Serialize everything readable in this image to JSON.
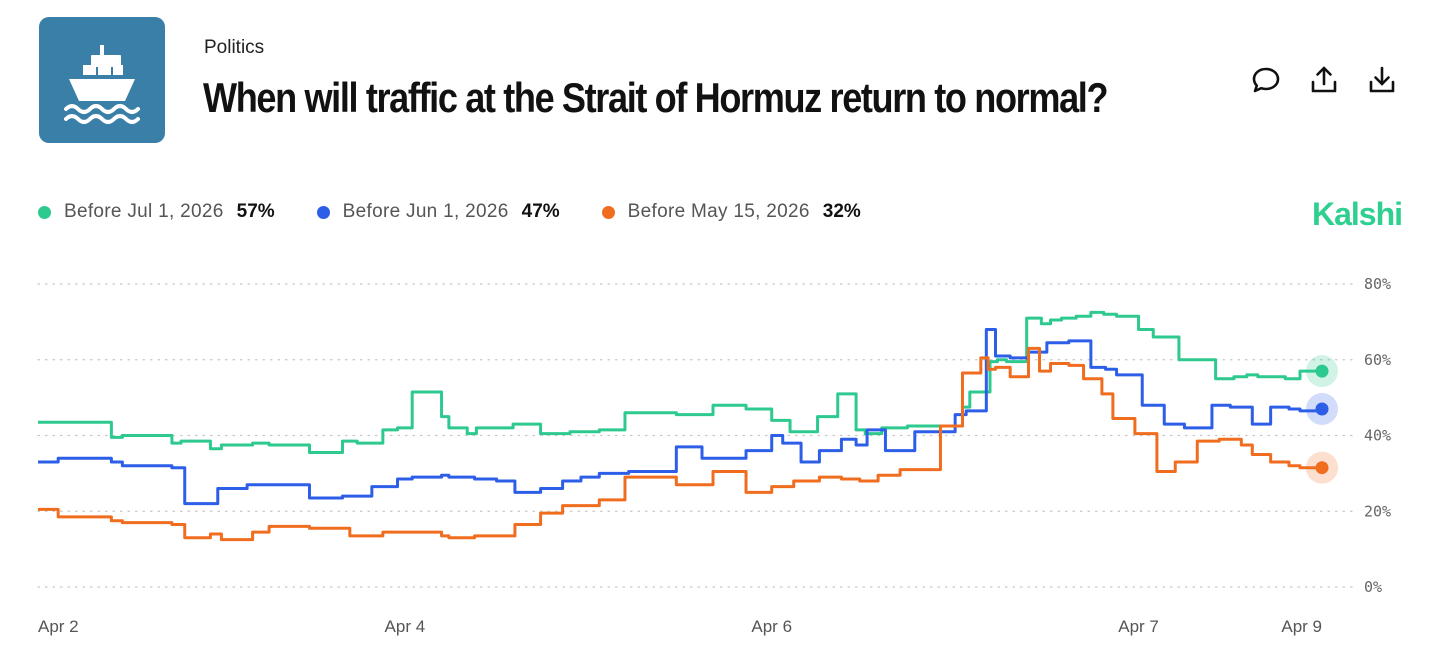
{
  "header": {
    "category": "Politics",
    "title": "When will traffic at the Strait of Hormuz return to normal?",
    "brand": "Kalshi",
    "logo_icon": "cargo-ship-icon",
    "actions": [
      {
        "name": "comment-button",
        "icon": "speech-bubble-icon"
      },
      {
        "name": "share-button",
        "icon": "upload-icon"
      },
      {
        "name": "download-button",
        "icon": "download-icon"
      }
    ]
  },
  "colors": {
    "logo_bg": "#3a7fa8",
    "brand": "#2ecf8f",
    "grid": "#c8c8c8"
  },
  "chart_data": {
    "type": "line",
    "title": "When will traffic at the Strait of Hormuz return to normal?",
    "xlabel": "",
    "ylabel": "",
    "ylim": [
      0,
      80
    ],
    "y_ticks": [
      {
        "value": 80,
        "label": "80%"
      },
      {
        "value": 60,
        "label": "60%"
      },
      {
        "value": 40,
        "label": "40%"
      },
      {
        "value": 20,
        "label": "20%"
      },
      {
        "value": 0,
        "label": "0%"
      }
    ],
    "x_range": [
      0,
      7
    ],
    "x_ticks": [
      {
        "value": 0,
        "label": "Apr 2"
      },
      {
        "value": 2,
        "label": "Apr 4"
      },
      {
        "value": 4,
        "label": "Apr 6"
      },
      {
        "value": 6,
        "label": "Apr 7"
      },
      {
        "value": 7,
        "label": "Apr 9"
      }
    ],
    "grid": true,
    "legend_position": "top-left",
    "series": [
      {
        "name": "Before Jul 1, 2026",
        "value_label": "57%",
        "color": "#2dc98e",
        "x": [
          0,
          0.11,
          0.4,
          0.46,
          0.73,
          0.78,
          0.94,
          1.0,
          1.17,
          1.26,
          1.48,
          1.66,
          1.74,
          1.88,
          1.96,
          2.04,
          2.2,
          2.24,
          2.34,
          2.39,
          2.59,
          2.74,
          2.9,
          3.06,
          3.2,
          3.48,
          3.68,
          3.86,
          4.0,
          4.1,
          4.25,
          4.36,
          4.46,
          4.51,
          4.6,
          4.74,
          5.04,
          5.08,
          5.19,
          5.23,
          5.28,
          5.39,
          5.47,
          5.52,
          5.58,
          5.66,
          5.74,
          5.81,
          5.88,
          6.0,
          6.08,
          6.22,
          6.42,
          6.52,
          6.59,
          6.65,
          6.8,
          6.88,
          7.0
        ],
        "y": [
          43.5,
          43.5,
          39.5,
          40,
          38,
          38.5,
          36.5,
          37.5,
          38,
          37.5,
          35.5,
          38.5,
          38,
          41.5,
          42,
          51.5,
          45,
          42,
          40.5,
          42,
          43,
          40.5,
          41,
          41.5,
          46,
          45.5,
          48,
          47,
          44,
          41,
          45,
          51,
          41.5,
          40.5,
          42,
          42.5,
          47.5,
          51.5,
          59.5,
          60,
          59.5,
          71,
          69.5,
          70.5,
          71,
          71.5,
          72.5,
          72,
          71.5,
          68,
          66,
          60,
          55,
          55.5,
          56,
          55.5,
          55,
          57,
          57
        ]
      },
      {
        "name": "Before Jun 1, 2026",
        "value_label": "47%",
        "color": "#2d5ee8",
        "x": [
          0,
          0.11,
          0.4,
          0.46,
          0.73,
          0.8,
          0.98,
          1.14,
          1.48,
          1.66,
          1.82,
          1.96,
          2.04,
          2.2,
          2.24,
          2.38,
          2.5,
          2.6,
          2.74,
          2.86,
          2.96,
          3.06,
          3.22,
          3.48,
          3.62,
          3.86,
          4.0,
          4.06,
          4.16,
          4.26,
          4.38,
          4.46,
          4.52,
          4.62,
          4.78,
          5.0,
          5.06,
          5.17,
          5.22,
          5.3,
          5.4,
          5.5,
          5.62,
          5.74,
          5.82,
          5.88,
          6.02,
          6.14,
          6.25,
          6.4,
          6.5,
          6.62,
          6.72,
          6.82,
          6.88,
          7.0
        ],
        "y": [
          33,
          34,
          33,
          32,
          31.5,
          22,
          26,
          27,
          23.5,
          24,
          26.5,
          28.5,
          29,
          29.5,
          29,
          28.5,
          28,
          25,
          26,
          28,
          29,
          30,
          30.5,
          37,
          34,
          36,
          40,
          38,
          33,
          36,
          39,
          37.5,
          41.5,
          36,
          41,
          45.5,
          46.5,
          68,
          61,
          60.5,
          62,
          64.5,
          65,
          58,
          57.5,
          56,
          48,
          43,
          42,
          48,
          47.5,
          43,
          47.5,
          47,
          46.5,
          47
        ]
      },
      {
        "name": "Before May 15, 2026",
        "value_label": "32%",
        "color": "#f06d1f",
        "x": [
          0,
          0.11,
          0.4,
          0.46,
          0.73,
          0.8,
          0.94,
          1.0,
          1.17,
          1.26,
          1.48,
          1.7,
          1.88,
          2.2,
          2.24,
          2.38,
          2.6,
          2.74,
          2.86,
          3.06,
          3.2,
          3.48,
          3.68,
          3.86,
          4.0,
          4.12,
          4.26,
          4.38,
          4.48,
          4.58,
          4.7,
          4.92,
          5.04,
          5.14,
          5.18,
          5.22,
          5.3,
          5.4,
          5.46,
          5.52,
          5.62,
          5.7,
          5.8,
          5.86,
          5.98,
          6.1,
          6.2,
          6.32,
          6.44,
          6.56,
          6.62,
          6.72,
          6.82,
          6.88,
          7.0
        ],
        "y": [
          20.5,
          18.5,
          17.5,
          17,
          16.5,
          13,
          14,
          12.5,
          14.5,
          16,
          15.5,
          13.5,
          14.5,
          13.5,
          13,
          13.5,
          16.5,
          19.5,
          21.5,
          23,
          29,
          27,
          30.5,
          25,
          26.5,
          28,
          29,
          28.5,
          28,
          29.5,
          31,
          42.5,
          56.5,
          60.5,
          57.5,
          58,
          55.5,
          63,
          57,
          59,
          58.5,
          55,
          51,
          44.5,
          40.5,
          30.5,
          33,
          38.5,
          39,
          37.5,
          35,
          33,
          32,
          31.5,
          31.5
        ]
      }
    ]
  }
}
